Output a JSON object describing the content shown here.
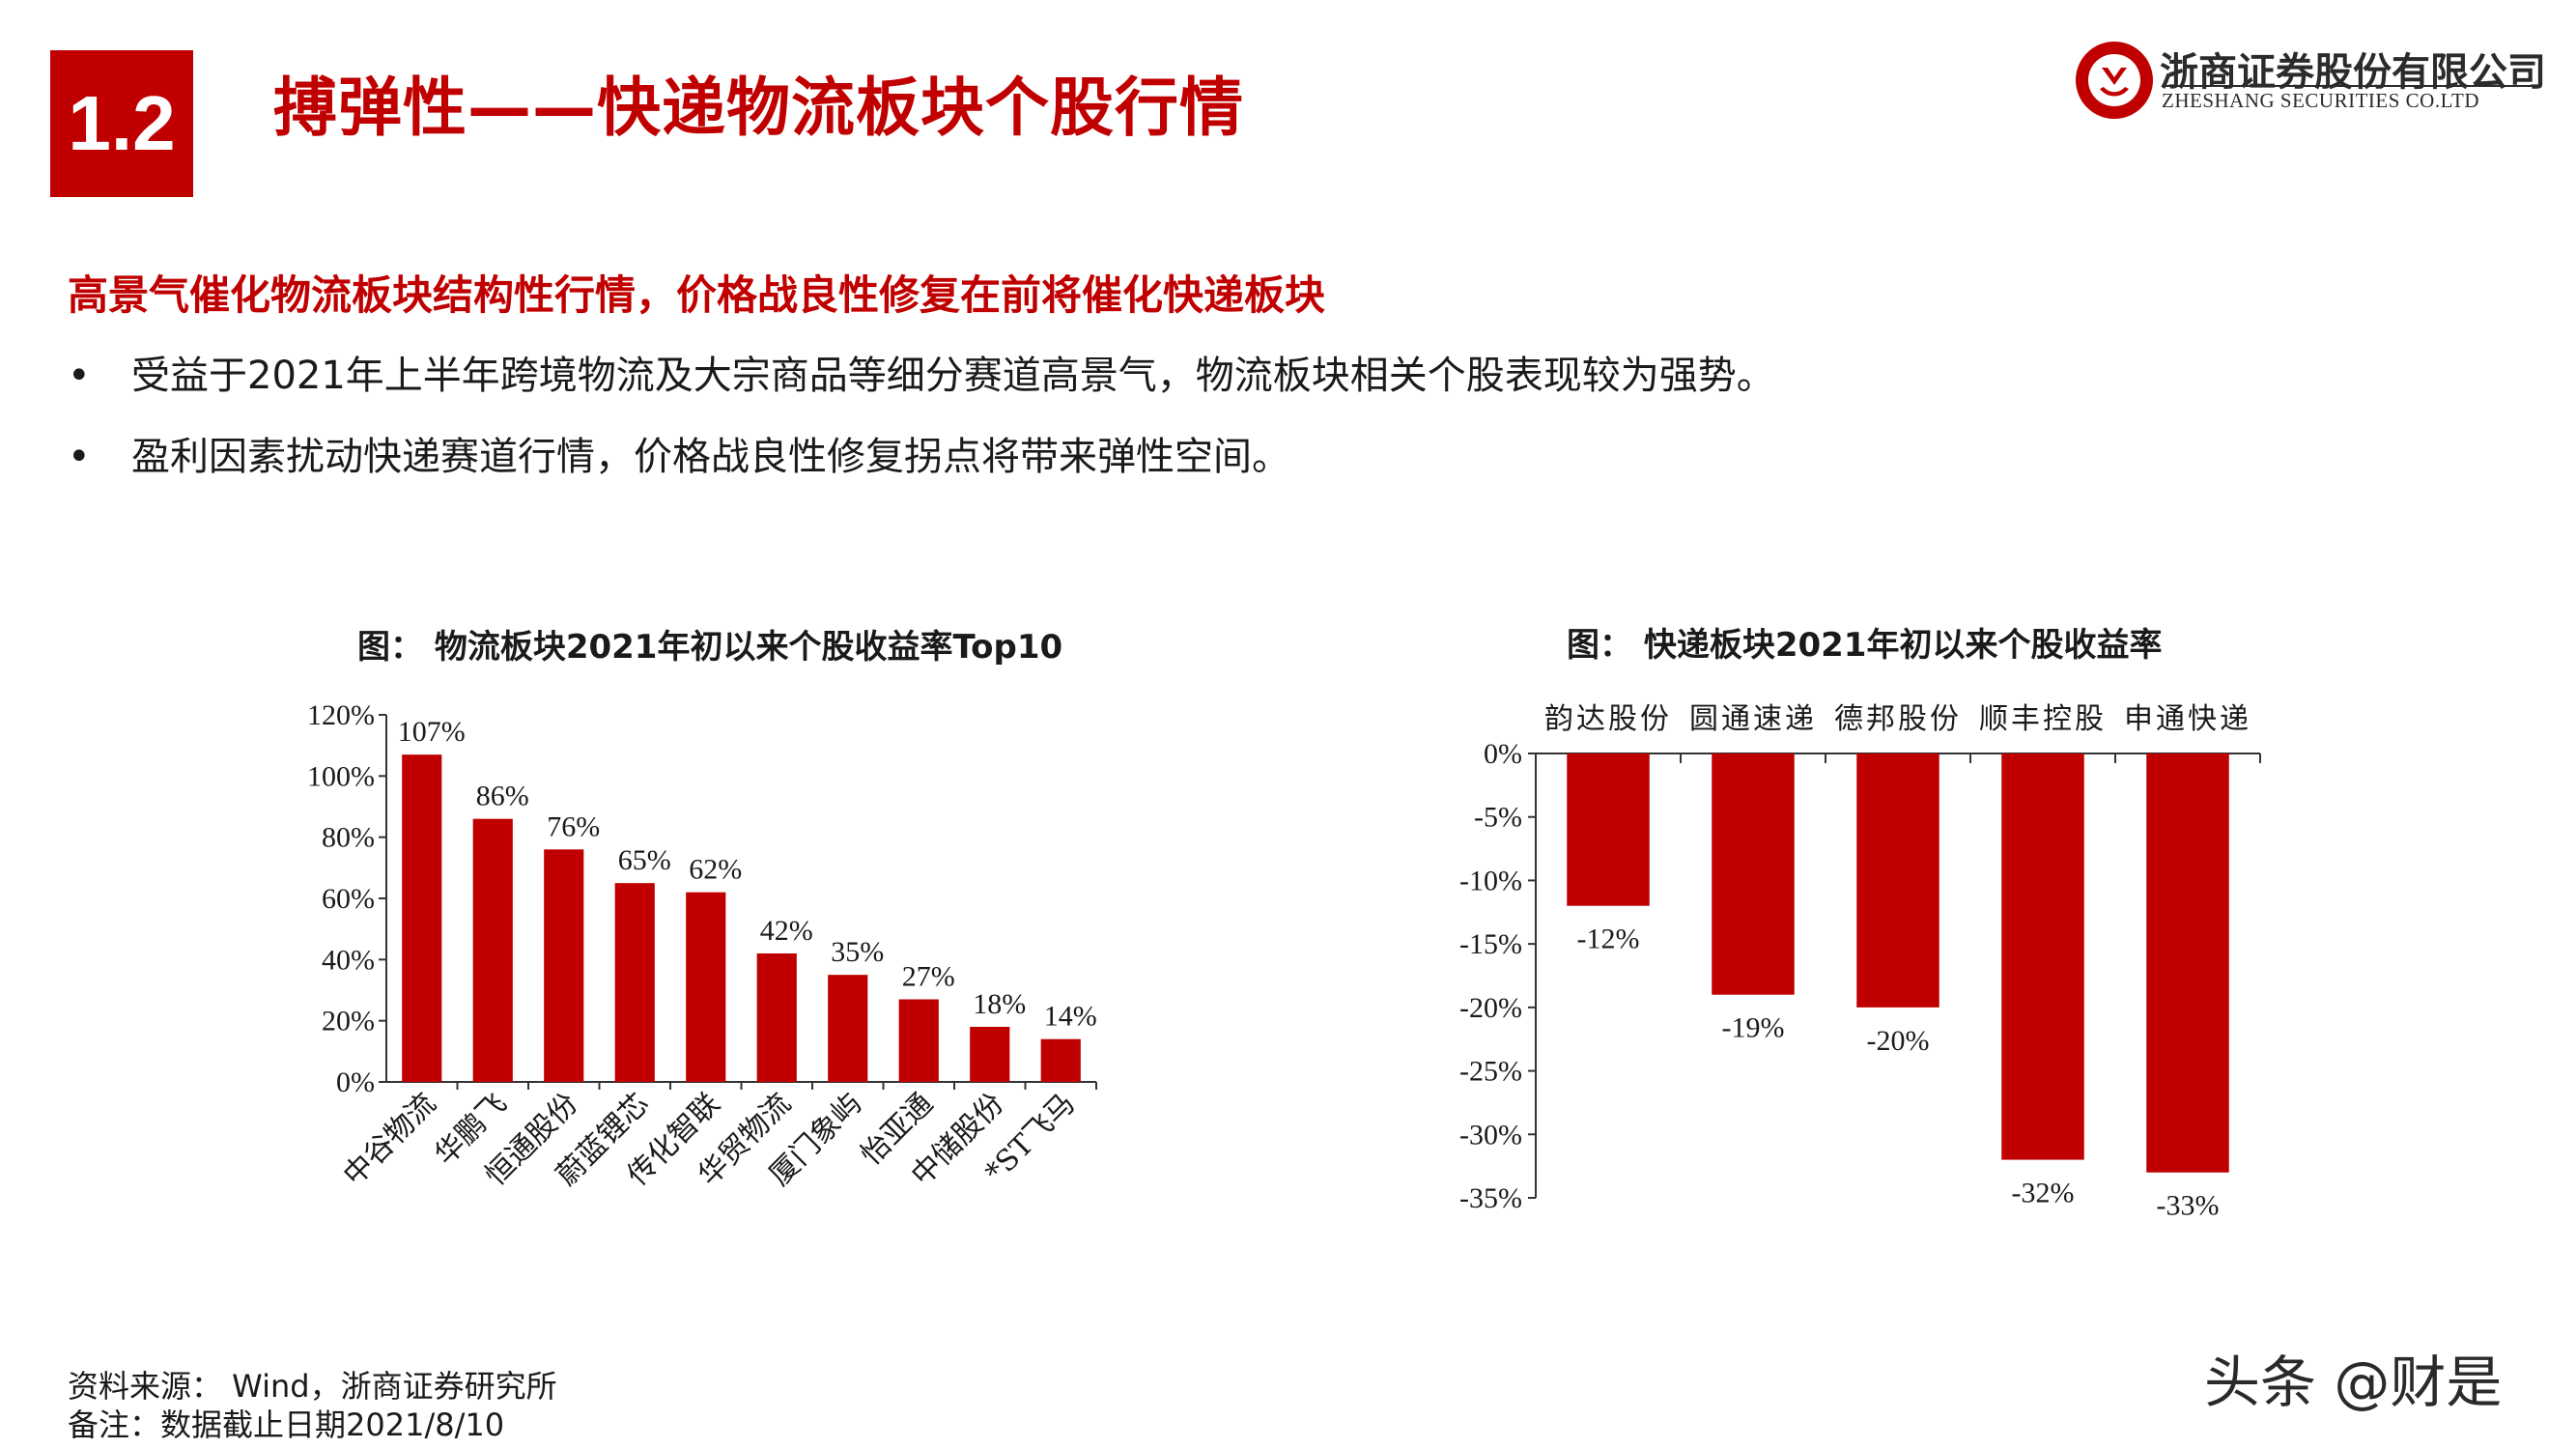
{
  "header": {
    "section_number": "1.2",
    "title": "搏弹性——快递物流板块个股行情",
    "logo_cn": "浙商证券股份有限公司",
    "logo_en": "ZHESHANG SECURITIES CO.LTD",
    "brand_color": "#c00000"
  },
  "content": {
    "headline": "高景气催化物流板块结构性行情，价格战良性修复在前将催化快递板块",
    "bullet_symbol": "•",
    "bullets": [
      "受益于2021年上半年跨境物流及大宗商品等细分赛道高景气，物流板块相关个股表现较为强势。",
      "盈利因素扰动快递赛道行情，价格战良性修复拐点将带来弹性空间。"
    ]
  },
  "chart_data": [
    {
      "type": "bar",
      "title": "图：  物流板块2021年初以来个股收益率Top10",
      "categories": [
        "中谷物流",
        "华鹏飞",
        "恒通股份",
        "蔚蓝锂芯",
        "传化智联",
        "华贸物流",
        "厦门象屿",
        "怡亚通",
        "中储股份",
        "*ST飞马"
      ],
      "values": [
        107,
        86,
        76,
        65,
        62,
        42,
        35,
        27,
        18,
        14
      ],
      "data_labels": [
        "107%",
        "86%",
        "76%",
        "65%",
        "62%",
        "42%",
        "35%",
        "27%",
        "18%",
        "14%"
      ],
      "ylim": [
        0,
        120
      ],
      "yticks": [
        0,
        20,
        40,
        60,
        80,
        100,
        120
      ],
      "ytick_labels": [
        "0%",
        "20%",
        "40%",
        "60%",
        "80%",
        "100%",
        "120%"
      ],
      "xlabel": "",
      "ylabel": "",
      "bar_color": "#c00000",
      "grid": false,
      "category_label_rotation": "diagonal"
    },
    {
      "type": "bar",
      "title": "图：  快递板块2021年初以来个股收益率",
      "categories": [
        "韵达股份",
        "圆通速递",
        "德邦股份",
        "顺丰控股",
        "申通快递"
      ],
      "values": [
        -12,
        -19,
        -20,
        -32,
        -33
      ],
      "data_labels": [
        "-12%",
        "-19%",
        "-20%",
        "-32%",
        "-33%"
      ],
      "ylim": [
        -35,
        0
      ],
      "yticks": [
        0,
        -5,
        -10,
        -15,
        -20,
        -25,
        -30,
        -35
      ],
      "ytick_labels": [
        "0%",
        "-5%",
        "-10%",
        "-15%",
        "-20%",
        "-25%",
        "-30%",
        "-35%"
      ],
      "xlabel": "",
      "ylabel": "",
      "bar_color": "#c00000",
      "grid": false,
      "category_label_position": "top"
    }
  ],
  "footer": {
    "source": "资料来源： Wind，浙商证券研究所",
    "note": "备注：数据截止日期2021/8/10",
    "watermark": "头条 @财是"
  }
}
